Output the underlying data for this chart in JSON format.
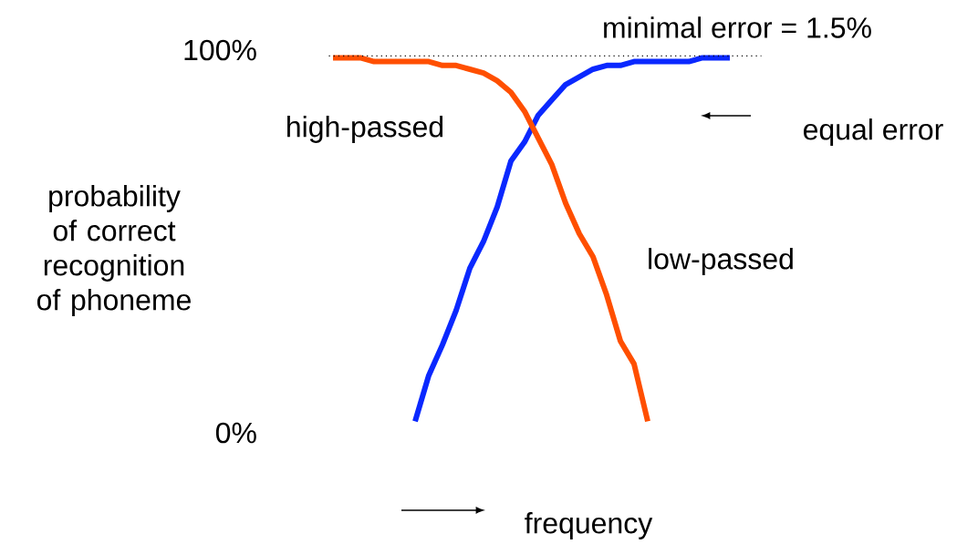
{
  "chart_data": {
    "type": "line",
    "ylabel": "probability of correct recognition of phoneme",
    "xlabel": "frequency",
    "categories": [
      null,
      null,
      null,
      null,
      null,
      null,
      null,
      null,
      null,
      null,
      null,
      null,
      null,
      null,
      null,
      null,
      null,
      null,
      null,
      null,
      null,
      null,
      null,
      null,
      null,
      null,
      null,
      null,
      null,
      null
    ],
    "series": [
      {
        "color": "#0a28ff",
        "values": [
          null,
          null,
          null,
          null,
          null,
          null,
          3,
          15,
          23,
          32,
          43,
          50,
          59,
          71,
          76,
          83,
          87,
          91,
          93,
          95,
          96,
          96,
          97,
          97,
          97,
          97,
          97,
          98,
          98,
          98
        ]
      },
      {
        "color": "#ff4f00",
        "values": [
          98,
          98,
          98,
          97,
          97,
          97,
          97,
          97,
          96,
          96,
          95,
          94,
          92,
          89,
          84,
          77,
          70,
          60,
          52,
          46,
          36,
          24,
          18,
          3,
          null,
          null,
          null,
          null,
          null,
          null
        ]
      }
    ],
    "ylim": [
      0,
      100
    ],
    "yticks": [
      {
        "value": 0,
        "label": "0%"
      },
      {
        "value": 100,
        "label": "100%"
      }
    ],
    "ref_lines": [
      {
        "axis": "y",
        "value": 98.5,
        "color": "#000000",
        "line_style": "dotted"
      }
    ],
    "annotations": [
      "high-passed",
      "low-passed",
      "equal error",
      "minimal error = 1.5%"
    ],
    "tick_labels": "y",
    "grid": false,
    "line_style": "solid",
    "marker": "none"
  }
}
